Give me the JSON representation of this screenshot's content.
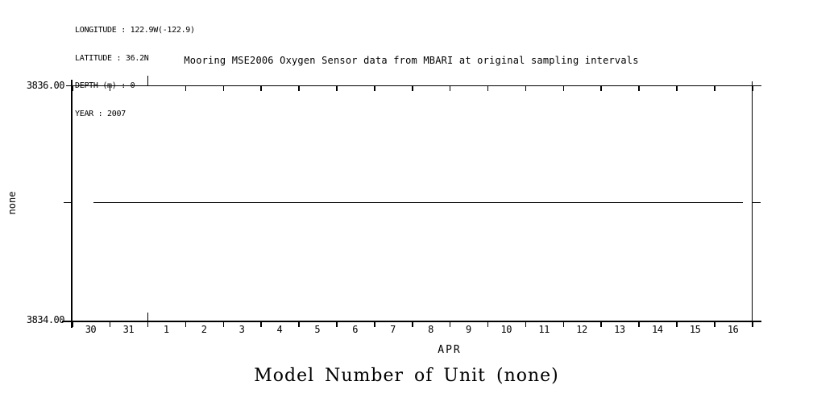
{
  "header": {
    "metadata_lines": [
      "LONGITUDE : 122.9W(-122.9)",
      "LATITUDE : 36.2N",
      "DEPTH (m) : 0",
      "YEAR : 2007"
    ]
  },
  "chart_data": {
    "type": "line",
    "title": "Mooring MSE2006 Oxygen Sensor data from MBARI at original sampling intervals",
    "figure_title": "Model Number of Unit (none)",
    "x_axis": {
      "month_label": "APR",
      "tick_labels": [
        "30",
        "31",
        "1",
        "2",
        "3",
        "4",
        "5",
        "6",
        "7",
        "8",
        "9",
        "10",
        "11",
        "12",
        "13",
        "14",
        "15",
        "16"
      ],
      "month_boundary_after_label_index": 1
    },
    "y_axis": {
      "label": "none",
      "ylim": [
        3834.0,
        3836.0
      ],
      "tick_values": [
        3834.0,
        3835.0,
        3836.0
      ],
      "tick_labels_shown": [
        "3836.00",
        "3834.00"
      ]
    },
    "series": [
      {
        "name": "Model Number of Unit",
        "units": "none",
        "style": "solid black horizontal line",
        "constant_value": 3835.0,
        "x_start_day_index": 0.6,
        "x_end_day_index": 17.8
      }
    ],
    "colors": {
      "foreground": "#000000",
      "background": "#ffffff"
    },
    "grid": false,
    "legend": false
  }
}
